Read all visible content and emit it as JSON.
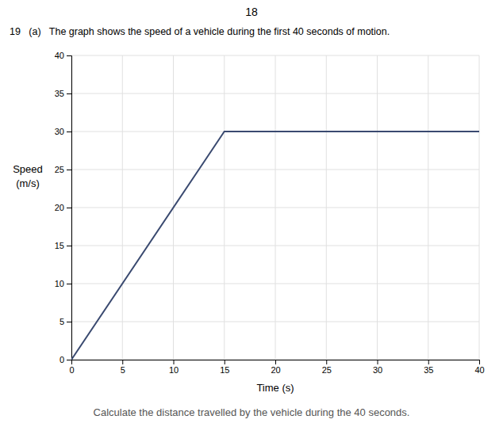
{
  "chart_data": {
    "type": "line",
    "title": "18",
    "subtitle": "19   (a)   The graph shows the speed of a vehicle during the first 40 seconds of motion.",
    "annotations": [
      "Calculate the distance travelled by the vehicle during the 40 seconds."
    ],
    "x": [
      0,
      15,
      40
    ],
    "values": [
      0,
      30,
      30
    ],
    "color": "#3a4a70",
    "xlim": [
      0,
      40
    ],
    "ylim": [
      0,
      40
    ],
    "xticks": [
      0,
      5,
      10,
      15,
      20,
      25,
      30,
      35,
      40
    ],
    "yticks": [
      0,
      5,
      10,
      15,
      20,
      25,
      30,
      35,
      40
    ],
    "xlabel": "Time (s)",
    "ylabel": [
      "Speed",
      "(m/s)"
    ],
    "grid": true
  }
}
